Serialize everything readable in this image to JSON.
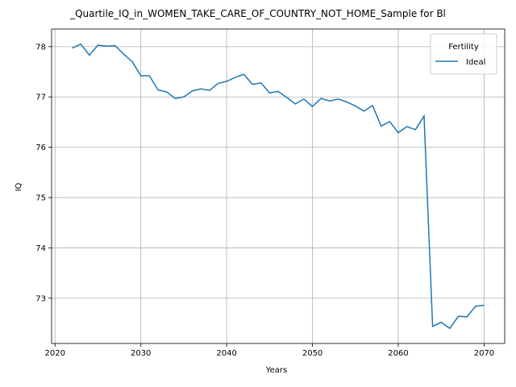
{
  "chart_data": {
    "type": "line",
    "title": "_Quartile_IQ_in_WOMEN_TAKE_CARE_OF_COUNTRY_NOT_HOME_Sample for Bl",
    "xlabel": "Years",
    "ylabel": "IQ",
    "xlim": [
      2019.6,
      2072.4
    ],
    "ylim": [
      72.1,
      78.35
    ],
    "xticks": [
      2020,
      2030,
      2040,
      2050,
      2060,
      2070
    ],
    "yticks": [
      73,
      74,
      75,
      76,
      77,
      78
    ],
    "grid": true,
    "legend": {
      "title": "Fertility",
      "placement": "top-right"
    },
    "line_color": "#1f77b4",
    "series": [
      {
        "name": "Ideal",
        "x": [
          2022,
          2023,
          2024,
          2025,
          2026,
          2027,
          2028,
          2029,
          2030,
          2031,
          2032,
          2033,
          2034,
          2035,
          2036,
          2037,
          2038,
          2039,
          2040,
          2041,
          2042,
          2043,
          2044,
          2045,
          2046,
          2047,
          2048,
          2049,
          2050,
          2051,
          2052,
          2053,
          2054,
          2055,
          2056,
          2057,
          2058,
          2059,
          2060,
          2061,
          2062,
          2063,
          2064,
          2065,
          2066,
          2067,
          2068,
          2069,
          2070
        ],
        "values": [
          77.97,
          78.05,
          77.83,
          78.03,
          78.01,
          78.02,
          77.85,
          77.7,
          77.42,
          77.42,
          77.14,
          77.1,
          76.97,
          77.0,
          77.12,
          77.16,
          77.13,
          77.27,
          77.31,
          77.39,
          77.45,
          77.25,
          77.28,
          77.08,
          77.11,
          76.99,
          76.86,
          76.96,
          76.81,
          76.97,
          76.92,
          76.96,
          76.9,
          76.82,
          76.72,
          76.83,
          76.42,
          76.51,
          76.29,
          76.41,
          76.35,
          76.62,
          72.44,
          72.52,
          72.4,
          72.64,
          72.63,
          72.84,
          72.86
        ]
      }
    ]
  }
}
